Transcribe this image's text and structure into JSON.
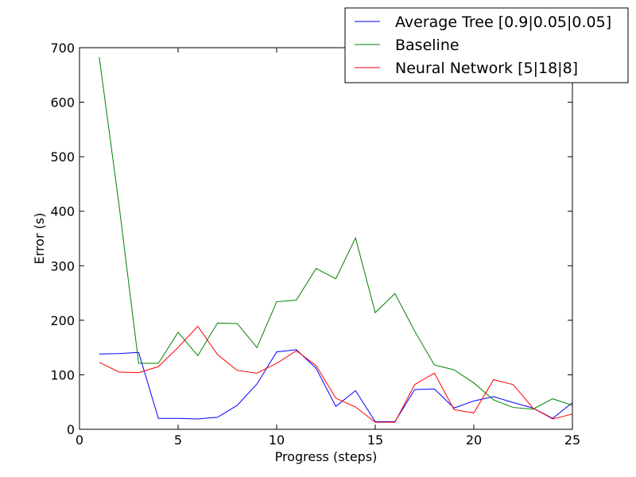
{
  "chart_data": {
    "type": "line",
    "title": "",
    "xlabel": "Progress (steps)",
    "ylabel": "Error (s)",
    "xlim": [
      0,
      25
    ],
    "ylim": [
      0,
      700
    ],
    "xticks": [
      0,
      5,
      10,
      15,
      20,
      25
    ],
    "yticks": [
      0,
      100,
      200,
      300,
      400,
      500,
      600,
      700
    ],
    "grid": false,
    "legend_position": "top-right",
    "x": [
      1,
      2,
      3,
      4,
      5,
      6,
      7,
      8,
      9,
      10,
      11,
      12,
      13,
      14,
      15,
      16,
      17,
      18,
      19,
      20,
      21,
      22,
      23,
      24,
      25
    ],
    "series": [
      {
        "name": "Average Tree [0.9|0.05|0.05]",
        "color": "#0000ff",
        "values": [
          138,
          139,
          141,
          20,
          20,
          19,
          22,
          44,
          83,
          142,
          146,
          112,
          42,
          71,
          14,
          14,
          73,
          74,
          39,
          52,
          60,
          49,
          39,
          20,
          49
        ]
      },
      {
        "name": "Baseline",
        "color": "#008000",
        "values": [
          683,
          413,
          121,
          121,
          178,
          135,
          195,
          194,
          150,
          234,
          237,
          295,
          276,
          351,
          214,
          249,
          180,
          118,
          109,
          85,
          54,
          40,
          37,
          56,
          44
        ]
      },
      {
        "name": "Neural Network [5|18|8]",
        "color": "#ff0000",
        "values": [
          123,
          105,
          104,
          115,
          150,
          189,
          137,
          108,
          103,
          121,
          144,
          117,
          57,
          41,
          13,
          13,
          82,
          103,
          36,
          30,
          91,
          82,
          39,
          19,
          28
        ]
      }
    ]
  }
}
